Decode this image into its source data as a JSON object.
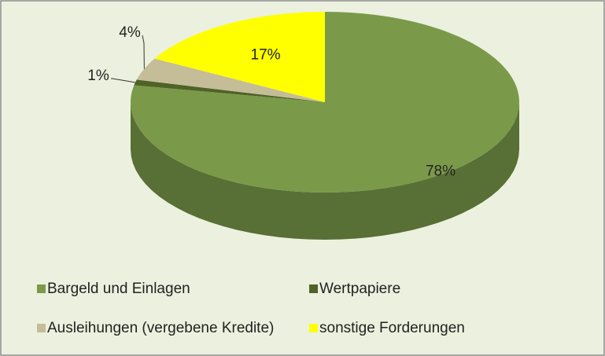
{
  "chart_data": {
    "type": "pie",
    "categories": [
      "Bargeld und Einlagen",
      "Wertpapiere",
      "Ausleihungen (vergebene Kredite)",
      "sonstige Forderungen"
    ],
    "values": [
      78,
      1,
      4,
      17
    ],
    "value_labels": [
      "78%",
      "1%",
      "4%",
      "17%"
    ],
    "colors": [
      "#7a9a4a",
      "#4f6228",
      "#c4bd97",
      "#ffff00"
    ],
    "legend": "bottom"
  }
}
